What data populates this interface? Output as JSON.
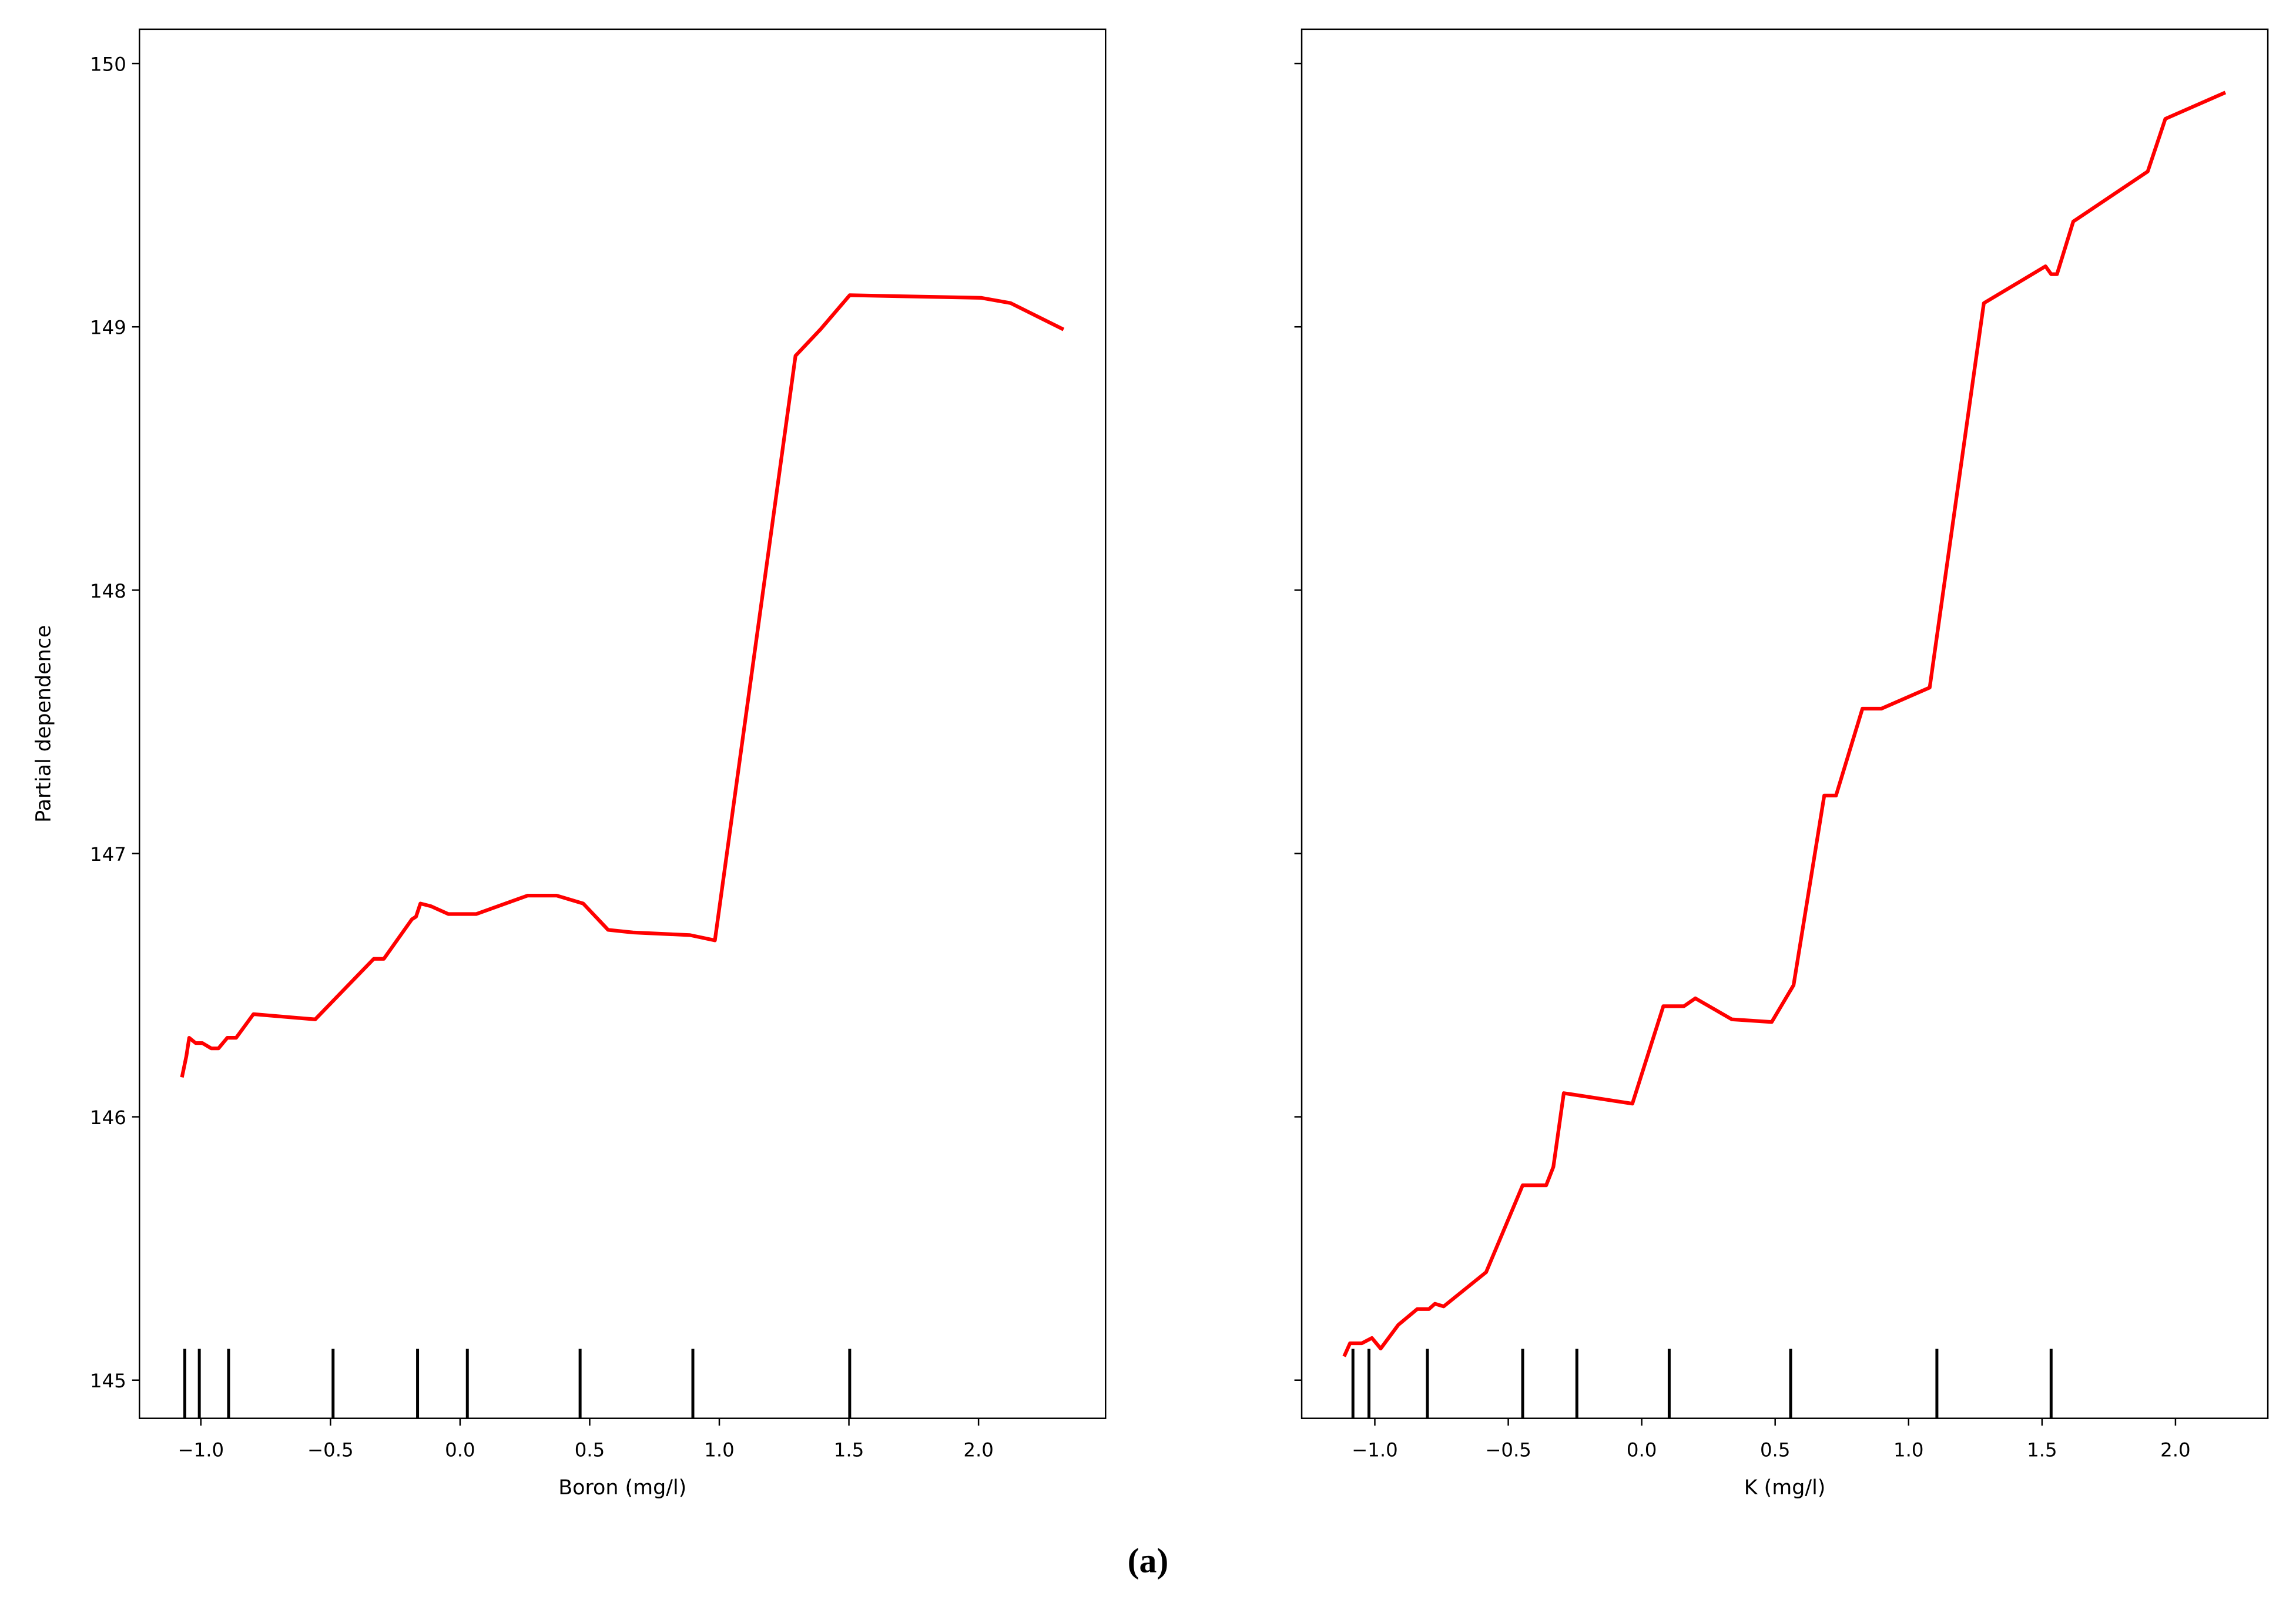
{
  "chart_data": [
    {
      "type": "line",
      "xlabel": "Boron (mg/l)",
      "ylabel": "Partial dependence",
      "color": "#ff0000",
      "x": [
        -1.073,
        -1.056,
        -1.045,
        -1.02,
        -0.994,
        -0.96,
        -0.932,
        -0.898,
        -0.864,
        -0.797,
        -0.559,
        -0.333,
        -0.294,
        -0.186,
        -0.17,
        -0.153,
        -0.113,
        -0.045,
        0.062,
        0.26,
        0.373,
        0.475,
        0.571,
        0.667,
        0.887,
        0.983,
        1.294,
        1.39,
        1.503,
        2.011,
        2.124,
        2.328
      ],
      "values": [
        146.15,
        146.23,
        146.3,
        146.28,
        146.28,
        146.26,
        146.26,
        146.3,
        146.3,
        146.39,
        146.37,
        146.6,
        146.6,
        146.75,
        146.76,
        146.81,
        146.8,
        146.77,
        146.77,
        146.84,
        146.84,
        146.81,
        146.71,
        146.7,
        146.69,
        146.67,
        148.89,
        148.99,
        149.12,
        149.11,
        149.09,
        148.99
      ],
      "rug": [
        -1.062,
        -1.006,
        -0.893,
        -0.49,
        -0.164,
        0.028,
        0.463,
        0.898,
        1.503
      ],
      "xlim": [
        -1.237,
        2.49
      ],
      "ylim": [
        144.855,
        150.13
      ],
      "xticks": [
        {
          "value": -1,
          "label": "−1.0"
        },
        {
          "value": -0.5,
          "label": "−0.5"
        },
        {
          "value": 0,
          "label": "0.0"
        },
        0.5,
        {
          "value": 1,
          "label": "1.0"
        },
        1.5,
        {
          "value": 2,
          "label": "2.0"
        }
      ],
      "yticks": [
        145,
        146,
        147,
        148,
        149,
        150
      ]
    },
    {
      "type": "line",
      "xlabel": "K (mg/l)",
      "color": "#ff0000",
      "sharey": true,
      "x": [
        -1.115,
        -1.093,
        -1.049,
        -1.011,
        -0.978,
        -0.912,
        -0.841,
        -0.797,
        -0.775,
        -0.742,
        -0.583,
        -0.446,
        -0.358,
        -0.331,
        -0.292,
        -0.035,
        0.081,
        0.158,
        0.201,
        0.338,
        0.487,
        0.569,
        0.684,
        0.728,
        0.827,
        0.898,
        1.079,
        1.282,
        1.513,
        1.534,
        1.556,
        1.617,
        1.896,
        1.962,
        2.187
      ],
      "values": [
        145.09,
        145.14,
        145.14,
        145.16,
        145.12,
        145.21,
        145.27,
        145.27,
        145.29,
        145.28,
        145.41,
        145.74,
        145.74,
        145.81,
        146.09,
        146.05,
        146.42,
        146.42,
        146.45,
        146.37,
        146.36,
        146.5,
        147.22,
        147.22,
        147.55,
        147.55,
        147.63,
        149.09,
        149.23,
        149.2,
        149.2,
        149.4,
        149.59,
        149.79,
        149.89
      ],
      "rug": [
        -1.082,
        -1.022,
        -0.803,
        -0.446,
        -0.243,
        0.103,
        0.558,
        1.106,
        1.534
      ],
      "xlim": [
        -1.274,
        2.346
      ],
      "ylim": [
        144.855,
        150.13
      ],
      "xticks": [
        {
          "value": -1,
          "label": "−1.0"
        },
        {
          "value": -0.5,
          "label": "−0.5"
        },
        {
          "value": 0,
          "label": "0.0"
        },
        0.5,
        {
          "value": 1,
          "label": "1.0"
        },
        1.5,
        {
          "value": 2,
          "label": "2.0"
        }
      ]
    }
  ],
  "caption": "(a)"
}
